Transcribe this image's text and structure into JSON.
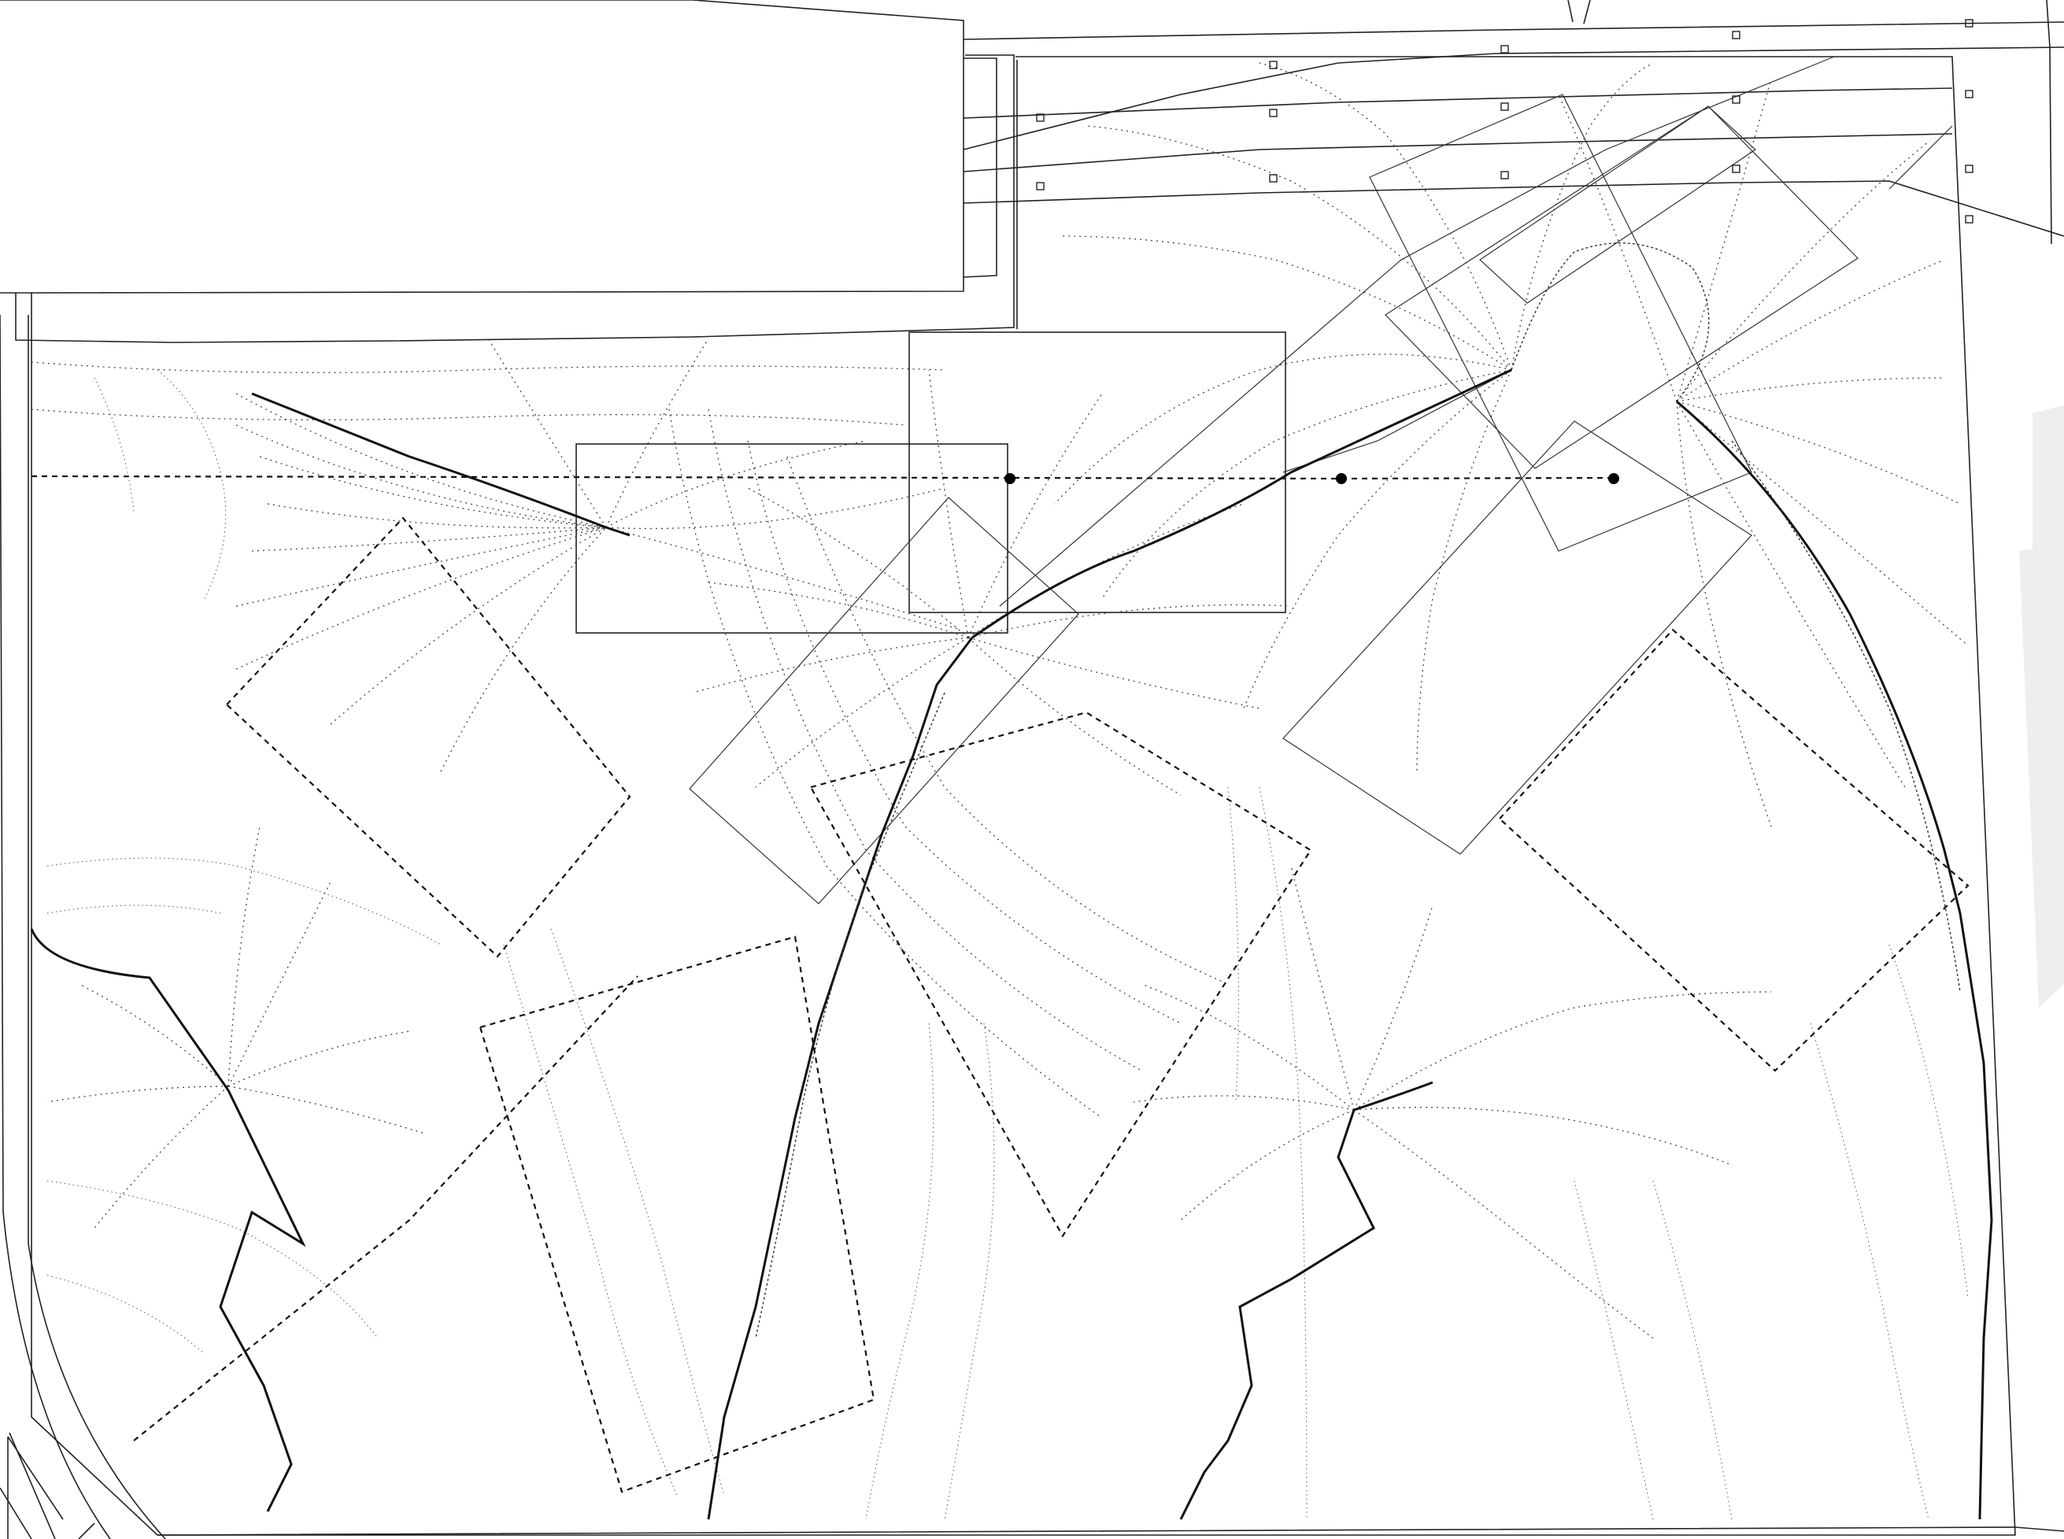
{
  "drawing": {
    "type": "site-plan line drawing with contour lines",
    "background_color": "#ffffff",
    "line_color": "#000000",
    "text_labels": []
  },
  "elements": {
    "building_outline": "solid",
    "roads": "solid",
    "site_boundary": "solid",
    "rotated_footprints": "dashed",
    "contour_lines": "dotted",
    "drainage_ridges": "solid-heavy",
    "survey_points": 3,
    "small_square_markers": 18
  }
}
